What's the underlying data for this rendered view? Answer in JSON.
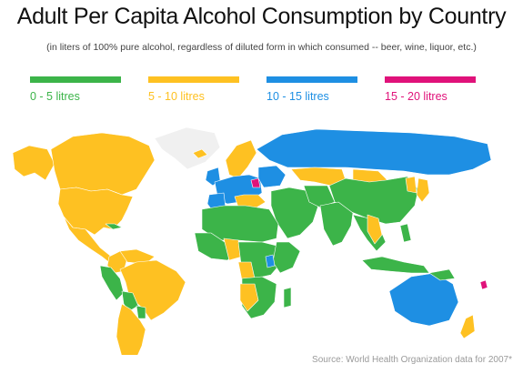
{
  "title": "Adult Per Capita Alcohol Consumption by Country",
  "subtitle": "(in liters of 100% pure alcohol, regardless of diluted form in which consumed -- beer, wine, liquor, etc.)",
  "legend": [
    {
      "label": "0 - 5 litres",
      "color": "#3cb449"
    },
    {
      "label": "5 - 10 litres",
      "color": "#fec122"
    },
    {
      "label": "10 - 15 litres",
      "color": "#1e8fe3"
    },
    {
      "label": "15 - 20 litres",
      "color": "#e0127a"
    }
  ],
  "no_data_color": "#f0f0f0",
  "source": "Source: World Health Organization data for 2007*"
}
